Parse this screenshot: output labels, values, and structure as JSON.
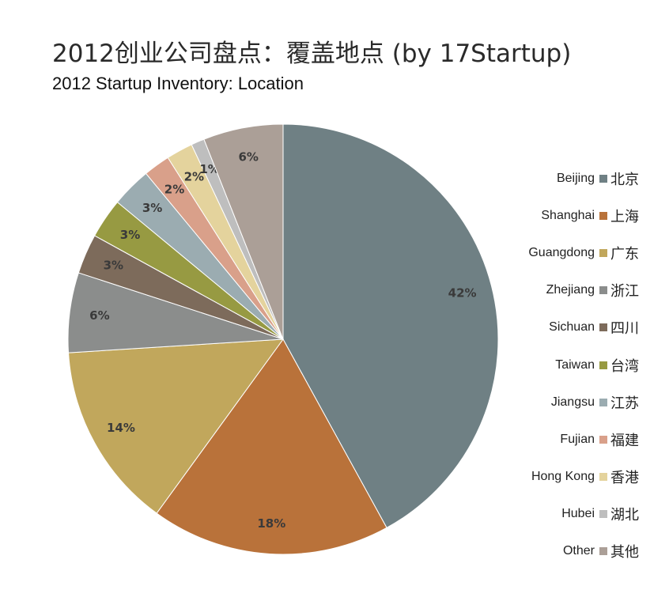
{
  "title": "2012创业公司盘点：覆盖地点 (by 17Startup)",
  "subtitle": "2012 Startup Inventory: Location",
  "chart_data": {
    "type": "pie",
    "title": "2012创业公司盘点：覆盖地点 (by 17Startup)",
    "subtitle": "2012 Startup Inventory: Location",
    "legend_position": "right",
    "start_angle": "12 o'clock",
    "direction": "clockwise",
    "slices": [
      {
        "name": "Beijing",
        "name_cn": "北京",
        "value": 42,
        "label": "42%",
        "color": "#6f8084"
      },
      {
        "name": "Shanghai",
        "name_cn": "上海",
        "value": 18,
        "label": "18%",
        "color": "#b9723a"
      },
      {
        "name": "Guangdong",
        "name_cn": "广东",
        "value": 14,
        "label": "14%",
        "color": "#c1a75c"
      },
      {
        "name": "Zhejiang",
        "name_cn": "浙江",
        "value": 6,
        "label": "6%",
        "color": "#8b8d8c"
      },
      {
        "name": "Sichuan",
        "name_cn": "四川",
        "value": 3,
        "label": "3%",
        "color": "#7d6b5b"
      },
      {
        "name": "Taiwan",
        "name_cn": "台湾",
        "value": 3,
        "label": "3%",
        "color": "#979a42"
      },
      {
        "name": "Jiangsu",
        "name_cn": "江苏",
        "value": 3,
        "label": "3%",
        "color": "#9bacb1"
      },
      {
        "name": "Fujian",
        "name_cn": "福建",
        "value": 2,
        "label": "2%",
        "color": "#d9a08a"
      },
      {
        "name": "Hong Kong",
        "name_cn": "香港",
        "value": 2,
        "label": "2%",
        "color": "#e4d39d"
      },
      {
        "name": "Hubei",
        "name_cn": "湖北",
        "value": 1,
        "label": "1%",
        "color": "#bebebe"
      },
      {
        "name": "Other",
        "name_cn": "其他",
        "value": 6,
        "label": "6%",
        "color": "#ab9f97"
      }
    ]
  }
}
